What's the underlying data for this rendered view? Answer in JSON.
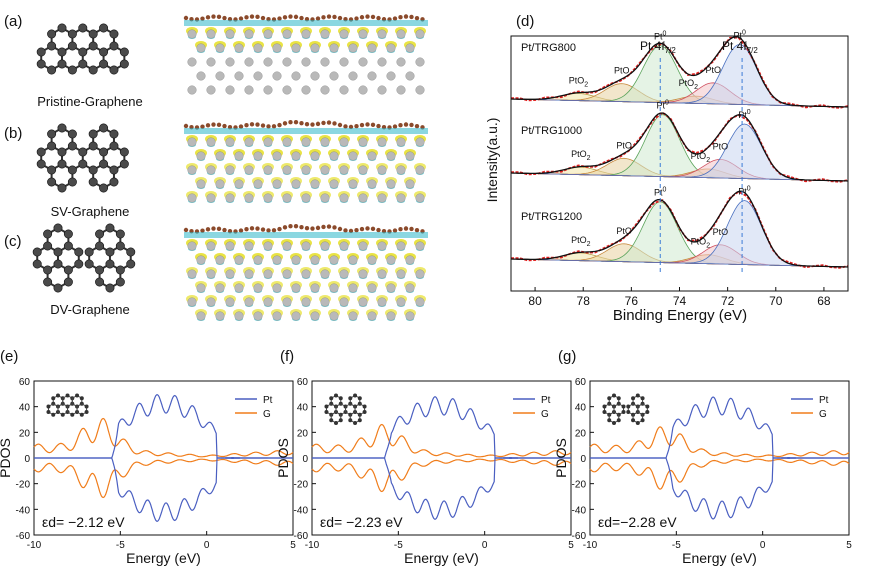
{
  "structures": [
    {
      "panel_label": "(a)",
      "name": "Pristine-Graphene"
    },
    {
      "panel_label": "(b)",
      "name": "SV-Graphene"
    },
    {
      "panel_label": "(c)",
      "name": "DV-Graphene"
    }
  ],
  "colors": {
    "carbon": "#8b4a2b",
    "pt_atom": "#b9b9b9",
    "cdd_yellow": "#e8e23a",
    "cdd_cyan": "#2bb7c8",
    "pt_line": "#4a5fc1",
    "g_line": "#f07d1b"
  },
  "chart_data": [
    {
      "type": "line",
      "panel_label": "(d)",
      "xlabel": "Binding Energy (eV)",
      "ylabel": "Intensity(a.u.)",
      "xlim": [
        81,
        67
      ],
      "xticks": [
        80,
        78,
        76,
        74,
        72,
        70,
        68
      ],
      "peak_labels": {
        "pt4f72": "Pt 4f7/2",
        "pt4f52": "Pt 4f7/2"
      },
      "series": [
        {
          "name": "Pt/TRG800",
          "peaks": [
            {
              "label": "PtO2",
              "center": 78.2,
              "height": 0.12
            },
            {
              "label": "PtO",
              "center": 76.4,
              "height": 0.3
            },
            {
              "label": "Pt0",
              "center": 74.8,
              "height": 0.95
            },
            {
              "label": "PtO2",
              "center": 73.3,
              "height": 0.12
            },
            {
              "label": "PtO",
              "center": 72.6,
              "height": 0.35
            },
            {
              "label": "Pt0",
              "center": 71.5,
              "height": 1.0
            }
          ]
        },
        {
          "name": "Pt/TRG1000",
          "peaks": [
            {
              "label": "PtO2",
              "center": 78.1,
              "height": 0.12
            },
            {
              "label": "PtO",
              "center": 76.3,
              "height": 0.28
            },
            {
              "label": "Pt0",
              "center": 74.7,
              "height": 1.0
            },
            {
              "label": "PtO2",
              "center": 72.8,
              "height": 0.14
            },
            {
              "label": "PtO",
              "center": 72.3,
              "height": 0.3
            },
            {
              "label": "Pt0",
              "center": 71.3,
              "height": 0.88
            }
          ]
        },
        {
          "name": "Pt/TRG1200",
          "peaks": [
            {
              "label": "PtO2",
              "center": 78.1,
              "height": 0.12
            },
            {
              "label": "PtO",
              "center": 76.3,
              "height": 0.28
            },
            {
              "label": "Pt0",
              "center": 74.8,
              "height": 0.95
            },
            {
              "label": "PtO2",
              "center": 72.8,
              "height": 0.14
            },
            {
              "label": "PtO",
              "center": 72.3,
              "height": 0.3
            },
            {
              "label": "Pt0",
              "center": 71.3,
              "height": 1.0
            }
          ]
        }
      ]
    },
    {
      "type": "line",
      "panel_label": "(e)",
      "xlabel": "Energy (eV)",
      "ylabel": "PDOS",
      "xlim": [
        -10,
        5
      ],
      "ylim": [
        -60,
        60
      ],
      "xticks": [
        -10,
        -5,
        0,
        5
      ],
      "yticks": [
        -60,
        -40,
        -20,
        0,
        20,
        40,
        60
      ],
      "legend": "top-right",
      "annotation": "εd= −2.12 eV",
      "inset": "pristine",
      "series": [
        {
          "name": "Pt",
          "peak": 50,
          "shoulder": -5.5
        },
        {
          "name": "G",
          "peak": 24,
          "shoulder": -6.2
        }
      ]
    },
    {
      "type": "line",
      "panel_label": "(f)",
      "xlabel": "Energy (eV)",
      "ylabel": "PDOS",
      "xlim": [
        -10,
        5
      ],
      "ylim": [
        -60,
        60
      ],
      "xticks": [
        -10,
        -5,
        0,
        5
      ],
      "yticks": [
        -60,
        -40,
        -20,
        0,
        20,
        40,
        60
      ],
      "legend": "top-right",
      "annotation": "εd= −2.23 eV",
      "inset": "sv",
      "series": [
        {
          "name": "Pt",
          "peak": 48,
          "shoulder": -5.8
        },
        {
          "name": "G",
          "peak": 19,
          "shoulder": -5.8
        }
      ]
    },
    {
      "type": "line",
      "panel_label": "(g)",
      "xlabel": "Energy (eV)",
      "ylabel": "PDOS",
      "xlim": [
        -10,
        5
      ],
      "ylim": [
        -60,
        60
      ],
      "xticks": [
        -10,
        -5,
        0,
        5
      ],
      "yticks": [
        -60,
        -40,
        -20,
        0,
        20,
        40,
        60
      ],
      "legend": "top-right",
      "annotation": "εd=−2.28 eV",
      "inset": "dv",
      "series": [
        {
          "name": "Pt",
          "peak": 48,
          "shoulder": -5.6
        },
        {
          "name": "G",
          "peak": 18,
          "shoulder": -5.6
        }
      ]
    }
  ]
}
